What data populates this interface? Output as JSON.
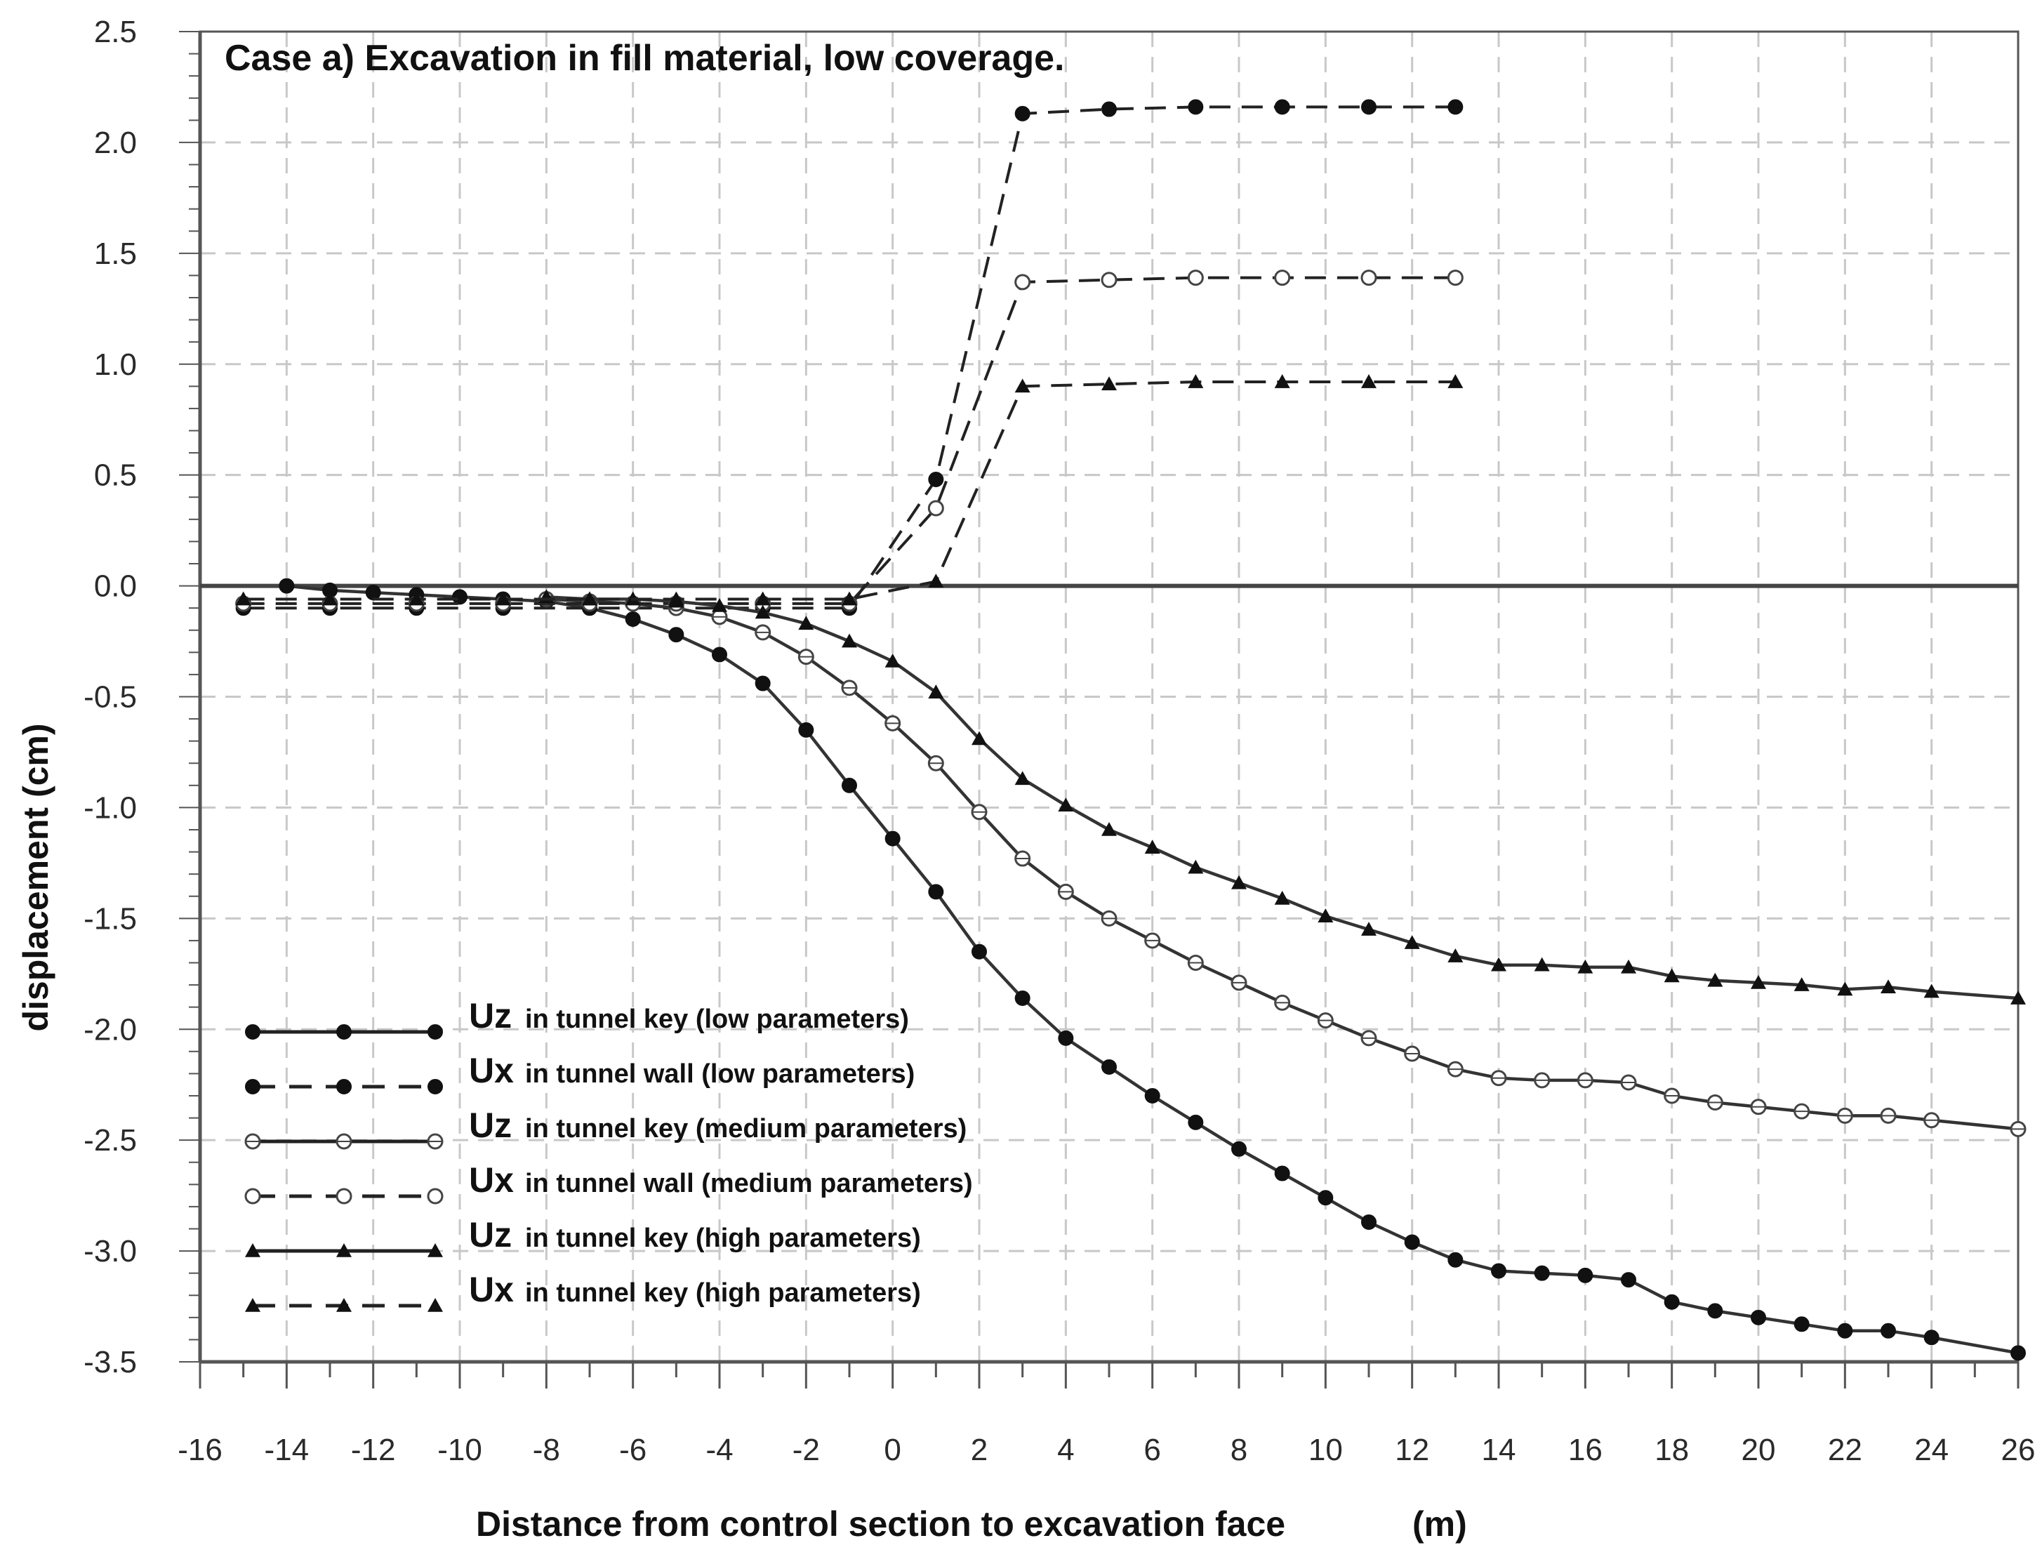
{
  "chart_data": {
    "type": "line",
    "title": "Case a) Excavation in fill material, low coverage.",
    "xlabel": "Distance from control section to excavation face",
    "xunit": "(m)",
    "ylabel": "displacement (cm)",
    "xlim": [
      -16,
      26
    ],
    "ylim": [
      -3.5,
      2.5
    ],
    "xticks": [
      "-16",
      "-14",
      "-12",
      "-10",
      "-8",
      "-6",
      "-4",
      "-2",
      "0",
      "2",
      "4",
      "6",
      "8",
      "10",
      "12",
      "14",
      "16",
      "18",
      "20",
      "22",
      "24",
      "26"
    ],
    "yticks": [
      "2.5",
      "2.0",
      "1.5",
      "1.0",
      "0.5",
      "0.0",
      "-0.5",
      "-1.0",
      "-1.5",
      "-2.0",
      "-2.5",
      "-3.0",
      "-3.5"
    ],
    "grid": true,
    "legend_position": "lower-left",
    "series": [
      {
        "name": "Uz in tunnel key (low parameters)",
        "symbol": "Uz",
        "label": "in tunnel key (low parameters)",
        "line": "solid",
        "marker": "filled-circle",
        "x": [
          -14,
          -13,
          -12,
          -11,
          -10,
          -9,
          -8,
          -7,
          -6,
          -5,
          -4,
          -3,
          -2,
          -1,
          0,
          1,
          2,
          3,
          4,
          5,
          6,
          7,
          8,
          9,
          10,
          11,
          12,
          13,
          14,
          15,
          16,
          17,
          18,
          19,
          20,
          21,
          22,
          23,
          24,
          26
        ],
        "y": [
          0.0,
          -0.02,
          -0.03,
          -0.04,
          -0.05,
          -0.06,
          -0.07,
          -0.1,
          -0.15,
          -0.22,
          -0.31,
          -0.44,
          -0.65,
          -0.9,
          -1.14,
          -1.38,
          -1.65,
          -1.86,
          -2.04,
          -2.17,
          -2.3,
          -2.42,
          -2.54,
          -2.65,
          -2.76,
          -2.87,
          -2.96,
          -3.04,
          -3.09,
          -3.1,
          -3.11,
          -3.13,
          -3.23,
          -3.27,
          -3.3,
          -3.33,
          -3.36,
          -3.36,
          -3.39,
          -3.46
        ]
      },
      {
        "name": "Ux in tunnel wall (low parameters)",
        "symbol": "Ux",
        "label": "in tunnel wall (low parameters)",
        "line": "dashed",
        "marker": "filled-circle",
        "x": [
          -15,
          -13,
          -11,
          -9,
          -7,
          -5,
          -3,
          -1,
          1,
          3,
          5,
          7,
          9,
          11,
          13
        ],
        "y": [
          -0.1,
          -0.1,
          -0.1,
          -0.1,
          -0.1,
          -0.1,
          -0.1,
          -0.1,
          0.48,
          2.13,
          2.15,
          2.16,
          2.16,
          2.16,
          2.16
        ]
      },
      {
        "name": "Uz in tunnel key (medium parameters)",
        "symbol": "Uz",
        "label": "in tunnel key (medium parameters)",
        "line": "solid",
        "marker": "crossed-circle",
        "x": [
          -8,
          -7,
          -6,
          -5,
          -4,
          -3,
          -2,
          -1,
          0,
          1,
          2,
          3,
          4,
          5,
          6,
          7,
          8,
          9,
          10,
          11,
          12,
          13,
          14,
          15,
          16,
          17,
          18,
          19,
          20,
          21,
          22,
          23,
          24,
          26
        ],
        "y": [
          -0.06,
          -0.07,
          -0.08,
          -0.1,
          -0.14,
          -0.21,
          -0.32,
          -0.46,
          -0.62,
          -0.8,
          -1.02,
          -1.23,
          -1.38,
          -1.5,
          -1.6,
          -1.7,
          -1.79,
          -1.88,
          -1.96,
          -2.04,
          -2.11,
          -2.18,
          -2.22,
          -2.23,
          -2.23,
          -2.24,
          -2.3,
          -2.33,
          -2.35,
          -2.37,
          -2.39,
          -2.39,
          -2.41,
          -2.45
        ]
      },
      {
        "name": "Ux in tunnel wall (medium parameters)",
        "symbol": "Ux",
        "label": "in tunnel wall (medium parameters)",
        "line": "dashed",
        "marker": "open-circle",
        "x": [
          -15,
          -13,
          -11,
          -9,
          -7,
          -5,
          -3,
          -1,
          1,
          3,
          5,
          7,
          9,
          11,
          13
        ],
        "y": [
          -0.08,
          -0.08,
          -0.08,
          -0.08,
          -0.08,
          -0.08,
          -0.08,
          -0.08,
          0.35,
          1.37,
          1.38,
          1.39,
          1.39,
          1.39,
          1.39
        ]
      },
      {
        "name": "Uz in tunnel key (high parameters)",
        "symbol": "Uz",
        "label": "in tunnel key (high parameters)",
        "line": "solid",
        "marker": "filled-triangle",
        "x": [
          -8,
          -7,
          -6,
          -5,
          -4,
          -3,
          -2,
          -1,
          0,
          1,
          2,
          3,
          4,
          5,
          6,
          7,
          8,
          9,
          10,
          11,
          12,
          13,
          14,
          15,
          16,
          17,
          18,
          19,
          20,
          21,
          22,
          23,
          24,
          26
        ],
        "y": [
          -0.05,
          -0.06,
          -0.06,
          -0.07,
          -0.09,
          -0.12,
          -0.17,
          -0.25,
          -0.34,
          -0.48,
          -0.69,
          -0.87,
          -0.99,
          -1.1,
          -1.18,
          -1.27,
          -1.34,
          -1.41,
          -1.49,
          -1.55,
          -1.61,
          -1.67,
          -1.71,
          -1.71,
          -1.72,
          -1.72,
          -1.76,
          -1.78,
          -1.79,
          -1.8,
          -1.82,
          -1.81,
          -1.83,
          -1.86
        ]
      },
      {
        "name": "Ux in tunnel key (high parameters)",
        "symbol": "Ux",
        "label": "in tunnel key (high parameters)",
        "line": "dashed",
        "marker": "filled-triangle",
        "x": [
          -15,
          -13,
          -11,
          -9,
          -7,
          -5,
          -3,
          -1,
          1,
          3,
          5,
          7,
          9,
          11,
          13
        ],
        "y": [
          -0.06,
          -0.06,
          -0.06,
          -0.06,
          -0.06,
          -0.06,
          -0.06,
          -0.06,
          0.02,
          0.9,
          0.91,
          0.92,
          0.92,
          0.92,
          0.92
        ]
      }
    ]
  }
}
